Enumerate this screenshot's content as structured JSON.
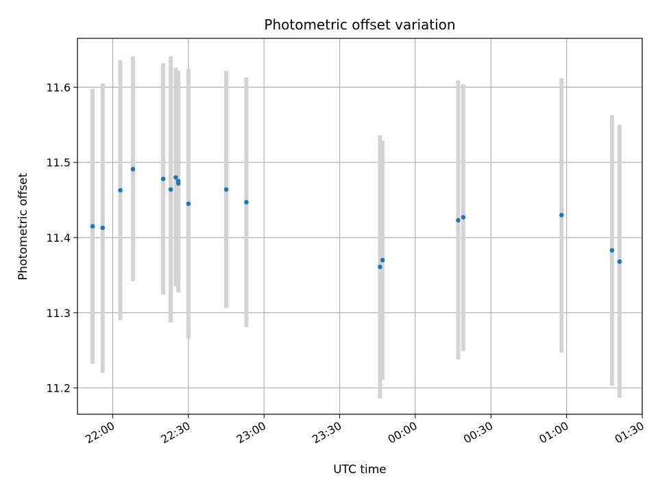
{
  "chart_data": {
    "type": "scatter",
    "title": "Photometric offset variation",
    "xlabel": "UTC time",
    "ylabel": "Photometric offset",
    "x_tick_labels": [
      "22:00",
      "22:30",
      "23:00",
      "23:30",
      "00:00",
      "00:30",
      "01:00",
      "01:30"
    ],
    "y_ticks": [
      11.2,
      11.3,
      11.4,
      11.5,
      11.6
    ],
    "y_tick_labels": [
      "11.2",
      "11.3",
      "11.4",
      "11.5",
      "11.6"
    ],
    "xlim": [
      "21:46",
      "01:30"
    ],
    "ylim": [
      11.165,
      11.665
    ],
    "grid": true,
    "marker_color": "#1f77b4",
    "errorbar_color": "#d3d3d3",
    "points": [
      {
        "x": "21:52",
        "y": 11.415,
        "low": 11.232,
        "high": 11.598
      },
      {
        "x": "21:56",
        "y": 11.413,
        "low": 11.22,
        "high": 11.605
      },
      {
        "x": "22:03",
        "y": 11.463,
        "low": 11.29,
        "high": 11.636
      },
      {
        "x": "22:08",
        "y": 11.491,
        "low": 11.342,
        "high": 11.641
      },
      {
        "x": "22:20",
        "y": 11.478,
        "low": 11.324,
        "high": 11.632
      },
      {
        "x": "22:23",
        "y": 11.464,
        "low": 11.287,
        "high": 11.641
      },
      {
        "x": "22:25",
        "y": 11.48,
        "low": 11.335,
        "high": 11.626
      },
      {
        "x": "22:26",
        "y": 11.475,
        "low": 11.327,
        "high": 11.622
      },
      {
        "x": "22:26",
        "y": 11.472,
        "low": 11.34,
        "high": 11.605
      },
      {
        "x": "22:30",
        "y": 11.445,
        "low": 11.266,
        "high": 11.624
      },
      {
        "x": "22:45",
        "y": 11.464,
        "low": 11.306,
        "high": 11.622
      },
      {
        "x": "22:53",
        "y": 11.447,
        "low": 11.281,
        "high": 11.613
      },
      {
        "x": "23:46",
        "y": 11.361,
        "low": 11.186,
        "high": 11.536
      },
      {
        "x": "23:47",
        "y": 11.37,
        "low": 11.211,
        "high": 11.529
      },
      {
        "x": "00:17",
        "y": 11.423,
        "low": 11.238,
        "high": 11.609
      },
      {
        "x": "00:19",
        "y": 11.427,
        "low": 11.249,
        "high": 11.604
      },
      {
        "x": "00:58",
        "y": 11.43,
        "low": 11.247,
        "high": 11.612
      },
      {
        "x": "01:18",
        "y": 11.383,
        "low": 11.203,
        "high": 11.563
      },
      {
        "x": "01:21",
        "y": 11.368,
        "low": 11.187,
        "high": 11.55
      }
    ]
  }
}
